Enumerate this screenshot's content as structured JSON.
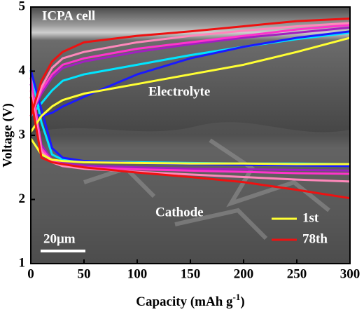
{
  "chart_data": {
    "type": "line",
    "x_label": {
      "text": "Capacity (mAh g",
      "superscript": "-1",
      "suffix": ")"
    },
    "y_label": "Voltage (V)",
    "annotations": {
      "cell": "ICPA cell",
      "electrolyte": "Electrolyte",
      "cathode": "Cathode",
      "scale": "20μm"
    },
    "x": [
      0,
      10,
      20,
      30,
      50,
      100,
      150,
      200,
      250,
      300
    ],
    "series": [
      {
        "color": "#00e5ff",
        "values": [
          3.3,
          3.5,
          3.7,
          3.85,
          3.95,
          4.1,
          4.25,
          4.38,
          4.5,
          4.6
        ]
      },
      {
        "color": "#00e5ff",
        "values": [
          4.0,
          3.2,
          2.7,
          2.62,
          2.6,
          2.58,
          2.57,
          2.56,
          2.56,
          2.55
        ]
      },
      {
        "color": "#1a1aff",
        "values": [
          3.35,
          3.3,
          3.35,
          3.45,
          3.6,
          3.95,
          4.2,
          4.38,
          4.52,
          4.62
        ]
      },
      {
        "color": "#1a1aff",
        "values": [
          4.02,
          3.4,
          2.8,
          2.65,
          2.6,
          2.57,
          2.55,
          2.54,
          2.53,
          2.52
        ]
      },
      {
        "color": "#a020c0",
        "values": [
          3.3,
          3.65,
          3.9,
          4.05,
          4.15,
          4.3,
          4.42,
          4.52,
          4.6,
          4.68
        ]
      },
      {
        "color": "#a020c0",
        "values": [
          3.8,
          2.85,
          2.62,
          2.57,
          2.53,
          2.5,
          2.48,
          2.47,
          2.46,
          2.45
        ]
      },
      {
        "color": "#ff33cc",
        "values": [
          3.3,
          3.7,
          3.95,
          4.1,
          4.2,
          4.35,
          4.45,
          4.55,
          4.65,
          4.72
        ]
      },
      {
        "color": "#ff33cc",
        "values": [
          3.9,
          2.8,
          2.6,
          2.55,
          2.5,
          2.47,
          2.45,
          2.43,
          2.41,
          2.4
        ]
      },
      {
        "color": "#ff88bb",
        "values": [
          3.3,
          3.75,
          4.05,
          4.2,
          4.3,
          4.45,
          4.55,
          4.63,
          4.7,
          4.75
        ]
      },
      {
        "color": "#ff88bb",
        "values": [
          3.7,
          2.75,
          2.58,
          2.52,
          2.48,
          2.43,
          2.39,
          2.35,
          2.31,
          2.28
        ]
      },
      {
        "name": "1st",
        "color": "#ffff33",
        "values": [
          3.05,
          3.3,
          3.45,
          3.55,
          3.65,
          3.8,
          3.95,
          4.1,
          4.3,
          4.52
        ]
      },
      {
        "color": "#ffff33",
        "values": [
          2.95,
          2.7,
          2.62,
          2.6,
          2.58,
          2.57,
          2.56,
          2.56,
          2.55,
          2.55
        ]
      },
      {
        "name": "78th",
        "color": "#ee1111",
        "values": [
          3.3,
          3.85,
          4.15,
          4.3,
          4.45,
          4.55,
          4.62,
          4.7,
          4.78,
          4.82
        ]
      },
      {
        "color": "#ee1111",
        "values": [
          3.6,
          2.65,
          2.58,
          2.55,
          2.5,
          2.42,
          2.35,
          2.27,
          2.15,
          2.02
        ]
      }
    ],
    "xlim": [
      0,
      300
    ],
    "xticks": [
      0,
      50,
      100,
      150,
      200,
      250,
      300
    ],
    "ylim": [
      1,
      5
    ],
    "yticks": [
      1,
      2,
      3,
      4,
      5
    ],
    "legend": "lower right"
  }
}
